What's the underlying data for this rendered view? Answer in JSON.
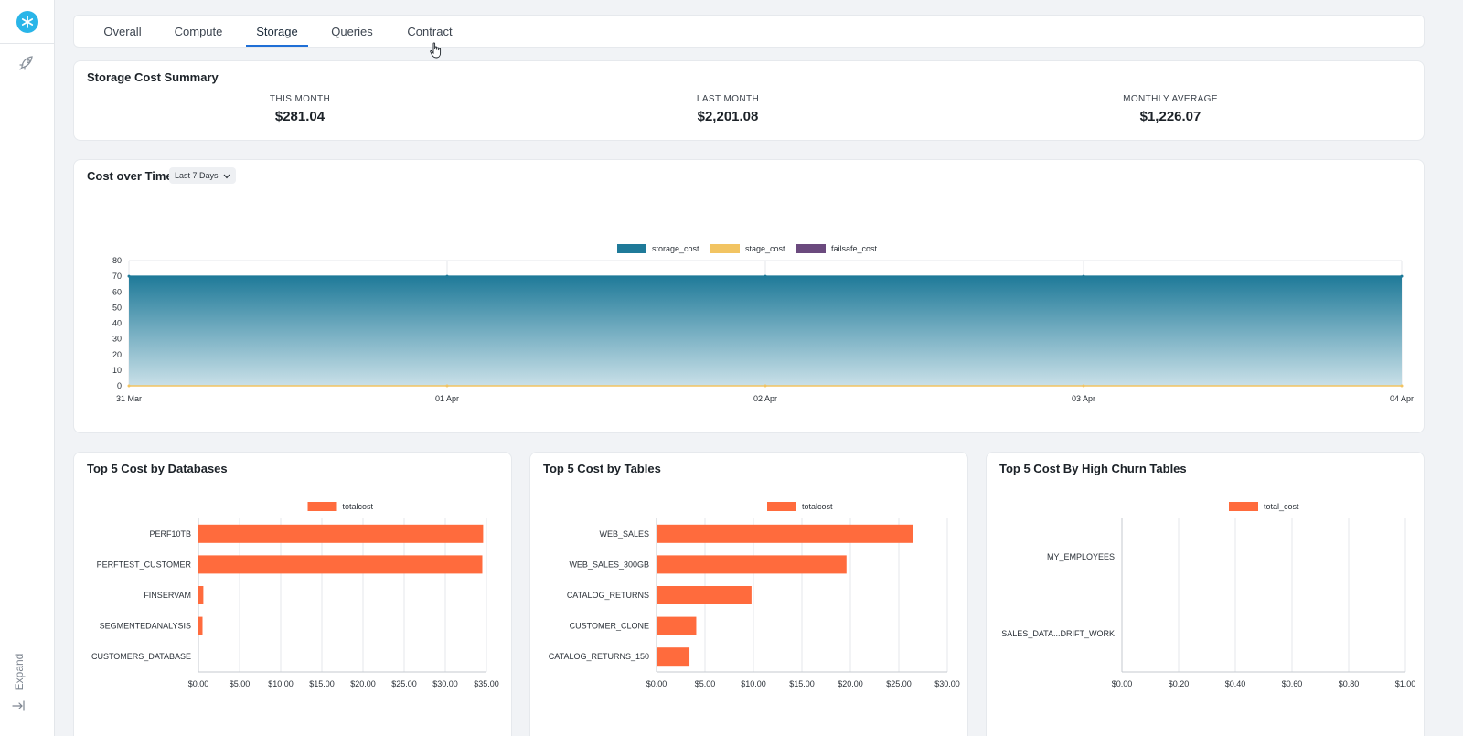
{
  "sidebar": {
    "expand_label": "Expand"
  },
  "tabs": [
    {
      "label": "Overall"
    },
    {
      "label": "Compute"
    },
    {
      "label": "Storage"
    },
    {
      "label": "Queries"
    },
    {
      "label": "Contract"
    }
  ],
  "active_tab": "Storage",
  "summary": {
    "title": "Storage Cost Summary",
    "metrics": [
      {
        "label": "THIS MONTH",
        "value": "$281.04"
      },
      {
        "label": "LAST MONTH",
        "value": "$2,201.08"
      },
      {
        "label": "MONTHLY AVERAGE",
        "value": "$1,226.07"
      }
    ]
  },
  "cost_over_time": {
    "title": "Cost over Time",
    "range": "Last 7 Days"
  },
  "colors": {
    "storage_cost": "#1f7a99",
    "stage_cost": "#f2c462",
    "failsafe_cost": "#6b4a7e",
    "bar": "#ff6b3d",
    "accent": "#1f6fd6"
  },
  "chart_data": [
    {
      "type": "area",
      "title": "",
      "x": [
        "31 Mar",
        "01 Apr",
        "02 Apr",
        "03 Apr",
        "04 Apr"
      ],
      "ylim": [
        0,
        80
      ],
      "yticks": [
        0,
        10,
        20,
        30,
        40,
        50,
        60,
        70,
        80
      ],
      "legend": "top-center",
      "grid": true,
      "series": [
        {
          "name": "storage_cost",
          "values": [
            70,
            70,
            70,
            70,
            70
          ]
        },
        {
          "name": "stage_cost",
          "values": [
            0,
            0,
            0,
            0,
            0
          ]
        },
        {
          "name": "failsafe_cost",
          "values": [
            0,
            0,
            0,
            0,
            0
          ]
        }
      ]
    },
    {
      "type": "bar",
      "orientation": "horizontal",
      "title": "Top 5 Cost by Databases",
      "categories": [
        "PERF10TB",
        "PERFTEST_CUSTOMER",
        "FINSERVAM",
        "SEGMENTEDANALYSIS",
        "CUSTOMERS_DATABASE"
      ],
      "series": [
        {
          "name": "totalcost",
          "values": [
            34.6,
            34.5,
            0.6,
            0.5,
            0
          ]
        }
      ],
      "xlim": [
        0,
        35
      ],
      "xticks": [
        "$0.00",
        "$5.00",
        "$10.00",
        "$15.00",
        "$20.00",
        "$25.00",
        "$30.00",
        "$35.00"
      ],
      "legend": "top-center",
      "grid": true
    },
    {
      "type": "bar",
      "orientation": "horizontal",
      "title": "Top 5 Cost by Tables",
      "categories": [
        "WEB_SALES",
        "WEB_SALES_300GB",
        "CATALOG_RETURNS",
        "CUSTOMER_CLONE",
        "CATALOG_RETURNS_150"
      ],
      "series": [
        {
          "name": "totalcost",
          "values": [
            26.5,
            19.6,
            9.8,
            4.1,
            3.4
          ]
        }
      ],
      "xlim": [
        0,
        30
      ],
      "xticks": [
        "$0.00",
        "$5.00",
        "$10.00",
        "$15.00",
        "$20.00",
        "$25.00",
        "$30.00"
      ],
      "legend": "top-center",
      "grid": true
    },
    {
      "type": "bar",
      "orientation": "horizontal",
      "title": "Top 5 Cost By High Churn Tables",
      "categories": [
        "MY_EMPLOYEES",
        "SALES_DATA...DRIFT_WORK"
      ],
      "series": [
        {
          "name": "total_cost",
          "values": [
            0,
            0
          ]
        }
      ],
      "xlim": [
        0,
        1
      ],
      "xticks": [
        "$0.00",
        "$0.20",
        "$0.40",
        "$0.60",
        "$0.80",
        "$1.00"
      ],
      "legend": "top-center",
      "grid": true
    }
  ]
}
